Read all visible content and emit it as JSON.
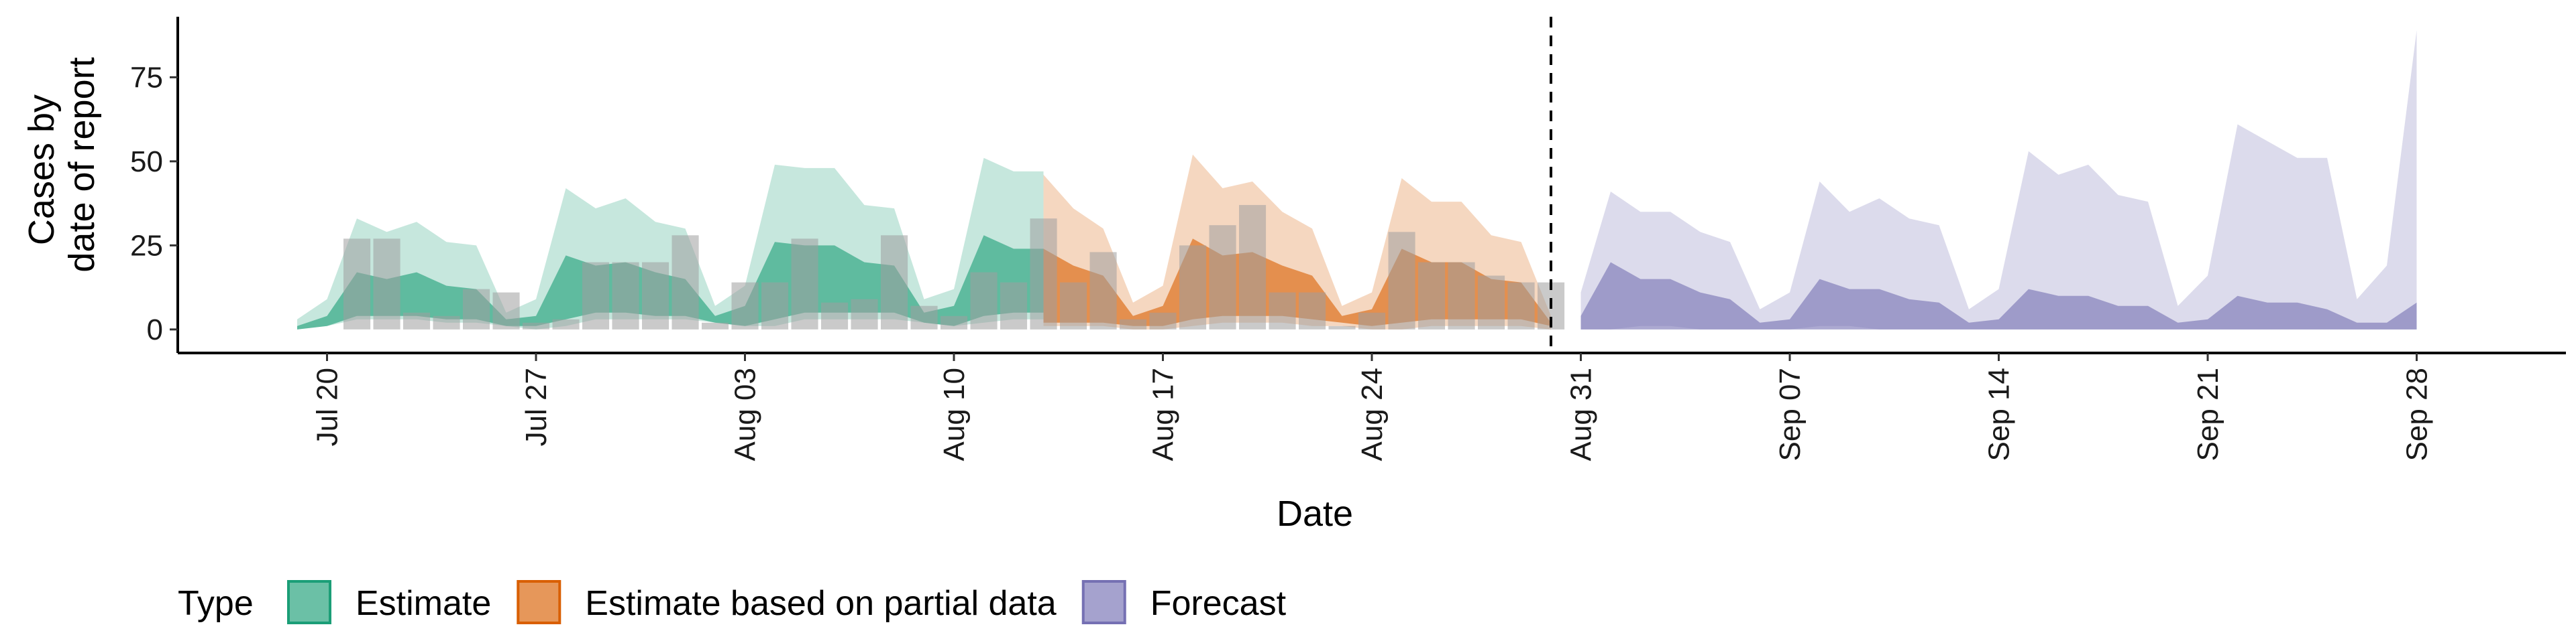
{
  "chart_data": {
    "type": "area",
    "xlabel": "Date",
    "ylabel_lines": [
      "Cases by",
      "date of report"
    ],
    "x_domain": [
      "2020-07-15",
      "2020-10-03"
    ],
    "ylim": [
      -7,
      93
    ],
    "y_ticks": [
      0,
      25,
      50,
      75
    ],
    "x_ticks": [
      {
        "date": "2020-07-20",
        "label": "Jul 20"
      },
      {
        "date": "2020-07-27",
        "label": "Jul 27"
      },
      {
        "date": "2020-08-03",
        "label": "Aug 03"
      },
      {
        "date": "2020-08-10",
        "label": "Aug 10"
      },
      {
        "date": "2020-08-17",
        "label": "Aug 17"
      },
      {
        "date": "2020-08-24",
        "label": "Aug 24"
      },
      {
        "date": "2020-08-31",
        "label": "Aug 31"
      },
      {
        "date": "2020-09-07",
        "label": "Sep 07"
      },
      {
        "date": "2020-09-14",
        "label": "Sep 14"
      },
      {
        "date": "2020-09-21",
        "label": "Sep 21"
      },
      {
        "date": "2020-09-28",
        "label": "Sep 28"
      }
    ],
    "cutoff_date": "2020-08-30",
    "grid": false,
    "legend": {
      "title": "Type",
      "position": "bottom-left",
      "items": [
        {
          "label": "Estimate",
          "color": "#1B9E77"
        },
        {
          "label": "Estimate based on partial data",
          "color": "#D95F02"
        },
        {
          "label": "Forecast",
          "color": "#7570B3"
        }
      ]
    },
    "bars": {
      "color": "#9E9E9E",
      "dates": [
        "2020-07-21",
        "2020-07-22",
        "2020-07-23",
        "2020-07-24",
        "2020-07-25",
        "2020-07-26",
        "2020-07-27",
        "2020-07-28",
        "2020-07-29",
        "2020-07-30",
        "2020-07-31",
        "2020-08-01",
        "2020-08-02",
        "2020-08-03",
        "2020-08-04",
        "2020-08-05",
        "2020-08-06",
        "2020-08-07",
        "2020-08-08",
        "2020-08-09",
        "2020-08-10",
        "2020-08-11",
        "2020-08-12",
        "2020-08-13",
        "2020-08-14",
        "2020-08-15",
        "2020-08-16",
        "2020-08-17",
        "2020-08-18",
        "2020-08-19",
        "2020-08-20",
        "2020-08-21",
        "2020-08-22",
        "2020-08-23",
        "2020-08-24",
        "2020-08-25",
        "2020-08-26",
        "2020-08-27",
        "2020-08-28",
        "2020-08-29",
        "2020-08-30"
      ],
      "values": [
        27,
        27,
        5,
        4,
        12,
        11,
        2,
        3,
        20,
        20,
        20,
        28,
        2,
        14,
        14,
        27,
        8,
        9,
        28,
        7,
        4,
        17,
        14,
        33,
        14,
        23,
        3,
        5,
        25,
        31,
        37,
        11,
        11,
        1,
        5,
        29,
        20,
        20,
        16,
        14,
        14
      ]
    },
    "series": [
      {
        "name": "Estimate",
        "color": "#1B9E77",
        "dates": [
          "2020-07-19",
          "2020-07-20",
          "2020-07-21",
          "2020-07-22",
          "2020-07-23",
          "2020-07-24",
          "2020-07-25",
          "2020-07-26",
          "2020-07-27",
          "2020-07-28",
          "2020-07-29",
          "2020-07-30",
          "2020-07-31",
          "2020-08-01",
          "2020-08-02",
          "2020-08-03",
          "2020-08-04",
          "2020-08-05",
          "2020-08-06",
          "2020-08-07",
          "2020-08-08",
          "2020-08-09",
          "2020-08-10",
          "2020-08-11",
          "2020-08-12",
          "2020-08-13"
        ],
        "outer_low": [
          0,
          1,
          3,
          3,
          3,
          2,
          2,
          1,
          0,
          1,
          3,
          3,
          3,
          3,
          2,
          1,
          1,
          3,
          3,
          3,
          3,
          2,
          1,
          2,
          3,
          3
        ],
        "outer_high": [
          3,
          9,
          33,
          29,
          32,
          26,
          25,
          5,
          9,
          42,
          36,
          39,
          32,
          30,
          7,
          13,
          49,
          48,
          48,
          37,
          36,
          9,
          12,
          51,
          47,
          47
        ],
        "inner_low": [
          0,
          1,
          4,
          4,
          4,
          3,
          3,
          1,
          1,
          3,
          5,
          5,
          4,
          4,
          2,
          1,
          3,
          5,
          5,
          5,
          5,
          2,
          1,
          4,
          5,
          5
        ],
        "inner_high": [
          1,
          4,
          17,
          15,
          17,
          13,
          12,
          3,
          4,
          22,
          19,
          20,
          17,
          15,
          4,
          7,
          26,
          25,
          25,
          20,
          19,
          5,
          7,
          28,
          24,
          24
        ]
      },
      {
        "name": "Estimate based on partial data",
        "color": "#D95F02",
        "dates": [
          "2020-08-13",
          "2020-08-14",
          "2020-08-15",
          "2020-08-16",
          "2020-08-17",
          "2020-08-18",
          "2020-08-19",
          "2020-08-20",
          "2020-08-21",
          "2020-08-22",
          "2020-08-23",
          "2020-08-24",
          "2020-08-25",
          "2020-08-26",
          "2020-08-27",
          "2020-08-28",
          "2020-08-29",
          "2020-08-30"
        ],
        "outer_low": [
          1,
          1,
          1,
          0,
          0,
          1,
          2,
          2,
          2,
          1,
          1,
          0,
          0,
          1,
          1,
          1,
          1,
          0
        ],
        "outer_high": [
          46,
          36,
          30,
          8,
          13,
          52,
          42,
          44,
          35,
          30,
          7,
          11,
          45,
          38,
          38,
          28,
          26,
          4
        ],
        "inner_low": [
          2,
          2,
          2,
          1,
          1,
          3,
          4,
          4,
          4,
          3,
          2,
          1,
          2,
          3,
          3,
          3,
          3,
          1
        ],
        "inner_high": [
          24,
          19,
          16,
          4,
          7,
          27,
          22,
          23,
          19,
          16,
          4,
          6,
          24,
          20,
          20,
          15,
          14,
          2
        ]
      },
      {
        "name": "Forecast",
        "color": "#7570B3",
        "dates": [
          "2020-08-31",
          "2020-09-01",
          "2020-09-02",
          "2020-09-03",
          "2020-09-04",
          "2020-09-05",
          "2020-09-06",
          "2020-09-07",
          "2020-09-08",
          "2020-09-09",
          "2020-09-10",
          "2020-09-11",
          "2020-09-12",
          "2020-09-13",
          "2020-09-14",
          "2020-09-15",
          "2020-09-16",
          "2020-09-17",
          "2020-09-18",
          "2020-09-19",
          "2020-09-20",
          "2020-09-21",
          "2020-09-22",
          "2020-09-23",
          "2020-09-24",
          "2020-09-25",
          "2020-09-26",
          "2020-09-27",
          "2020-09-28"
        ],
        "outer_low": [
          0,
          0,
          1,
          1,
          0,
          0,
          0,
          0,
          1,
          1,
          0,
          0,
          0,
          0,
          0,
          0,
          0,
          0,
          0,
          0,
          0,
          0,
          0,
          0,
          0,
          0,
          0,
          0,
          0
        ],
        "outer_high": [
          11,
          41,
          35,
          35,
          29,
          26,
          6,
          11,
          44,
          35,
          39,
          33,
          31,
          6,
          12,
          53,
          46,
          49,
          40,
          38,
          7,
          16,
          61,
          56,
          51,
          51,
          9,
          19,
          89
        ],
        "inner_low": [
          0,
          0,
          0,
          0,
          0,
          0,
          0,
          0,
          0,
          0,
          0,
          0,
          0,
          0,
          0,
          0,
          0,
          0,
          0,
          0,
          0,
          0,
          0,
          0,
          0,
          0,
          0,
          0,
          0
        ],
        "inner_high": [
          4,
          20,
          15,
          15,
          11,
          9,
          2,
          3,
          15,
          12,
          12,
          9,
          8,
          2,
          3,
          12,
          10,
          10,
          7,
          7,
          2,
          3,
          10,
          8,
          8,
          6,
          2,
          2,
          8
        ]
      }
    ]
  }
}
